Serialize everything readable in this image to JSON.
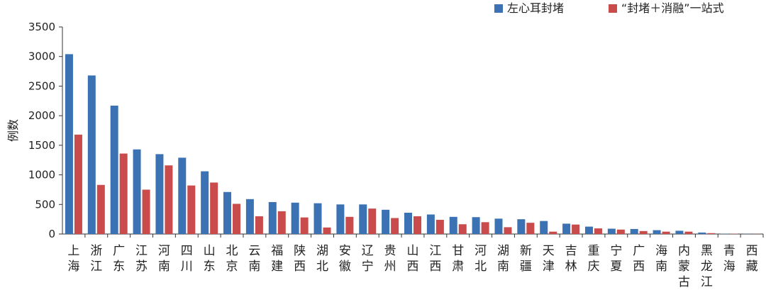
{
  "chart_data": {
    "type": "bar",
    "ylabel": "例数",
    "ylim": [
      0,
      3500
    ],
    "yticks": [
      0,
      500,
      1000,
      1500,
      2000,
      2500,
      3000,
      3500
    ],
    "legend_position": "top-right",
    "grid": false,
    "categories": [
      "上海",
      "浙江",
      "广东",
      "江苏",
      "河南",
      "四川",
      "山东",
      "北京",
      "云南",
      "福建",
      "陕西",
      "湖北",
      "安徽",
      "辽宁",
      "贵州",
      "山西",
      "江西",
      "甘肃",
      "河北",
      "湖南",
      "新疆",
      "天津",
      "吉林",
      "重庆",
      "宁夏",
      "广西",
      "海南",
      "内蒙古",
      "黑龙江",
      "青海",
      "西藏"
    ],
    "series": [
      {
        "name": "左心耳封堵",
        "color": "#3b72b3",
        "values": [
          3040,
          2680,
          2170,
          1430,
          1350,
          1290,
          1060,
          710,
          590,
          540,
          530,
          520,
          500,
          500,
          410,
          360,
          330,
          290,
          285,
          260,
          250,
          220,
          175,
          125,
          90,
          85,
          65,
          55,
          25,
          5,
          3
        ]
      },
      {
        "name": "“封堵＋消融”一站式",
        "color": "#c94b4b",
        "values": [
          1680,
          830,
          1360,
          750,
          1160,
          820,
          870,
          510,
          300,
          385,
          280,
          110,
          290,
          430,
          270,
          300,
          240,
          165,
          200,
          115,
          190,
          40,
          160,
          95,
          75,
          50,
          40,
          40,
          15,
          5,
          3
        ]
      }
    ]
  }
}
